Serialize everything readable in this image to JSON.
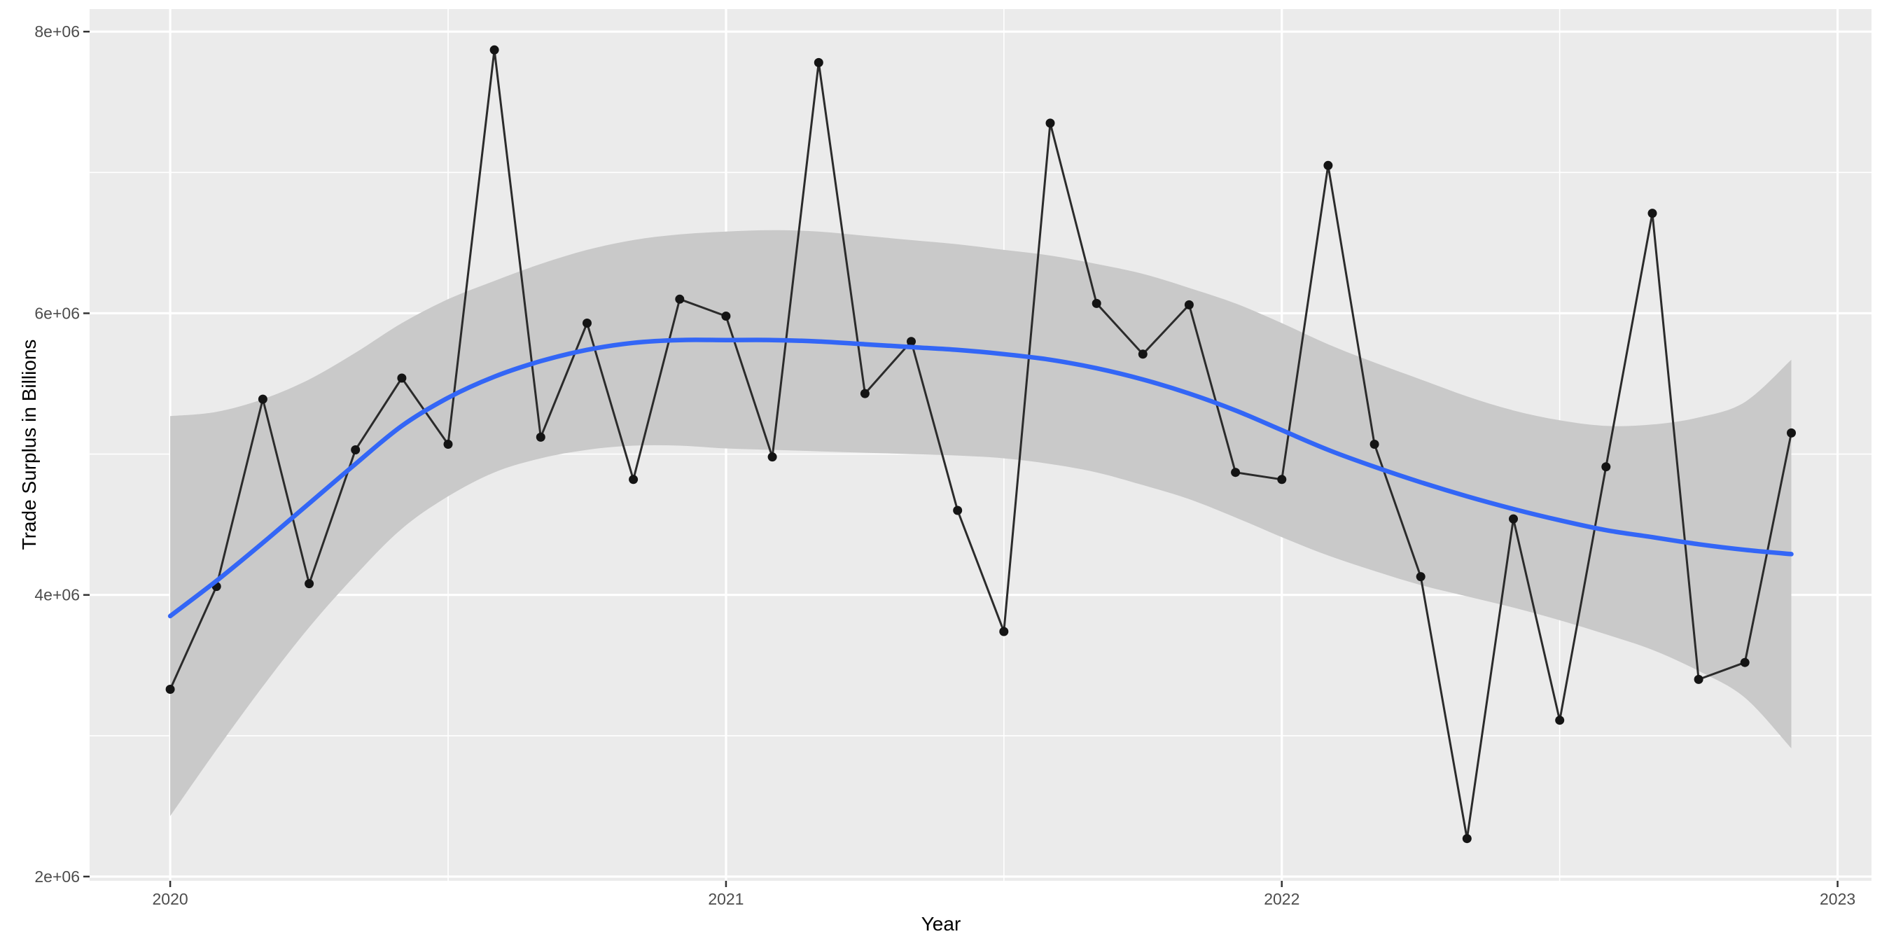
{
  "figure": {
    "xlabel": "Year",
    "ylabel": "Trade Surplus in Billions"
  },
  "chart_data": {
    "type": "line",
    "title": "",
    "xlabel": "Year",
    "ylabel": "Trade Surplus in Billions",
    "grid": true,
    "legend": "none",
    "xlim": [
      2019.855,
      2023.061
    ],
    "ylim": [
      1970000,
      8160000
    ],
    "x_major_ticks": [
      2020,
      2021,
      2022,
      2023
    ],
    "x_major_labels": [
      "2020",
      "2021",
      "2022",
      "2023"
    ],
    "x_minor_ticks": [
      2020.5,
      2021.5,
      2022.5
    ],
    "y_major_ticks": [
      2000000,
      4000000,
      6000000,
      8000000
    ],
    "y_major_labels": [
      "2e+06",
      "4e+06",
      "6e+06",
      "8e+06"
    ],
    "y_minor_ticks": [
      3000000,
      5000000,
      7000000
    ],
    "colors": {
      "page_background": "#FFFFFF",
      "panel_background": "#EBEBEB",
      "grid_major": "#FFFFFF",
      "grid_minor": "#FFFFFF",
      "observed_line": "#2B2B2B",
      "data_point": "#141414",
      "smooth_line": "#3366F6",
      "ribbon": "#C9C9C9",
      "tick_label": "#4D4D4D",
      "tick_mark": "#333333",
      "axis_title": "#000000"
    },
    "x": [
      2020.0,
      2020.0833,
      2020.1667,
      2020.25,
      2020.3333,
      2020.4167,
      2020.5,
      2020.5833,
      2020.6667,
      2020.75,
      2020.8333,
      2020.9167,
      2021.0,
      2021.0833,
      2021.1667,
      2021.25,
      2021.3333,
      2021.4167,
      2021.5,
      2021.5833,
      2021.6667,
      2021.75,
      2021.8333,
      2021.9167,
      2022.0,
      2022.0833,
      2022.1667,
      2022.25,
      2022.3333,
      2022.4167,
      2022.5,
      2022.5833,
      2022.6667,
      2022.75,
      2022.8333,
      2022.9167
    ],
    "series": [
      {
        "name": "observed",
        "values": [
          3330000,
          4060000,
          5390000,
          4080000,
          5030000,
          5540000,
          5070000,
          7870000,
          5120000,
          5930000,
          4820000,
          6100000,
          5980000,
          4980000,
          7780000,
          5430000,
          5800000,
          4600000,
          3740000,
          7350000,
          6070000,
          5710000,
          6060000,
          4870000,
          4820000,
          7050000,
          5070000,
          4130000,
          2270000,
          4540000,
          3110000,
          4910000,
          6710000,
          3400000,
          3520000,
          5150000
        ]
      },
      {
        "name": "loess_smooth",
        "values": [
          3850000,
          4100000,
          4370000,
          4650000,
          4930000,
          5200000,
          5400000,
          5550000,
          5660000,
          5740000,
          5790000,
          5810000,
          5810000,
          5810000,
          5800000,
          5780000,
          5760000,
          5740000,
          5710000,
          5670000,
          5610000,
          5530000,
          5430000,
          5310000,
          5170000,
          5030000,
          4910000,
          4800000,
          4700000,
          4610000,
          4530000,
          4460000,
          4410000,
          4360000,
          4320000,
          4290000
        ]
      },
      {
        "name": "ci_upper",
        "values": [
          5270000,
          5300000,
          5390000,
          5530000,
          5720000,
          5930000,
          6100000,
          6230000,
          6350000,
          6450000,
          6520000,
          6560000,
          6580000,
          6590000,
          6580000,
          6550000,
          6520000,
          6490000,
          6450000,
          6410000,
          6350000,
          6280000,
          6180000,
          6070000,
          5930000,
          5780000,
          5650000,
          5530000,
          5410000,
          5310000,
          5240000,
          5200000,
          5210000,
          5260000,
          5370000,
          5670000
        ]
      },
      {
        "name": "ci_lower",
        "values": [
          2430000,
          2900000,
          3350000,
          3770000,
          4140000,
          4470000,
          4700000,
          4870000,
          4970000,
          5030000,
          5060000,
          5060000,
          5040000,
          5030000,
          5020000,
          5010000,
          5000000,
          4990000,
          4970000,
          4930000,
          4870000,
          4780000,
          4680000,
          4550000,
          4410000,
          4280000,
          4170000,
          4070000,
          3990000,
          3910000,
          3820000,
          3720000,
          3610000,
          3460000,
          3270000,
          2910000
        ]
      }
    ]
  }
}
